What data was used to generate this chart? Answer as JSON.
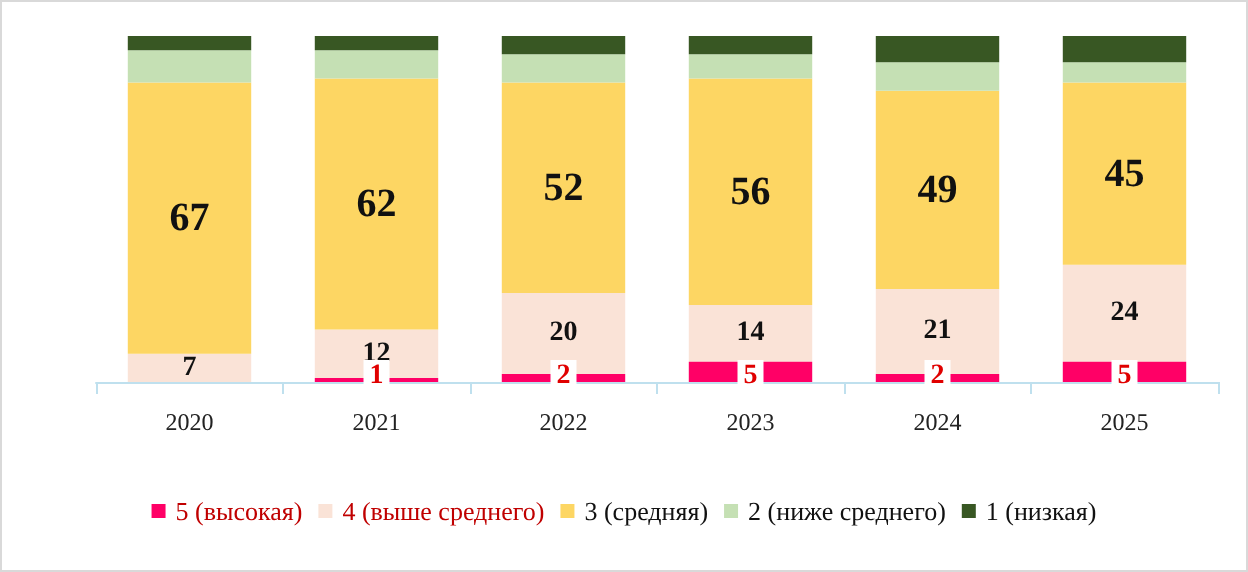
{
  "chart_data": {
    "type": "bar",
    "stacked": true,
    "categories": [
      "2020",
      "2021",
      "2022",
      "2023",
      "2024",
      "2025"
    ],
    "legend": "bottom",
    "series": [
      {
        "name": "5 (высокая)",
        "color": "#ff0066",
        "values": [
          0,
          1,
          2,
          5,
          2,
          5
        ],
        "value_labels": [
          null,
          "1",
          "2",
          "5",
          "2",
          "5"
        ]
      },
      {
        "name": "4 (выше среднего)",
        "color": "#fae3d7",
        "values": [
          7,
          12,
          20,
          14,
          21,
          24
        ],
        "value_labels": [
          "7",
          "12",
          "20",
          "14",
          "21",
          "24"
        ]
      },
      {
        "name": "3 (средняя)",
        "color": "#fdd663",
        "values": [
          67,
          62,
          52,
          56,
          49,
          45
        ],
        "value_labels": [
          "67",
          "62",
          "52",
          "56",
          "49",
          "45"
        ]
      },
      {
        "name": "2 (ниже среднего)",
        "color": "#c5e0b4",
        "values": [
          8,
          7,
          7,
          6,
          7,
          5
        ]
      },
      {
        "name": "1 (низкая)",
        "color": "#385723",
        "values": [
          3.5,
          3.5,
          4.5,
          4.5,
          6.5,
          6.5
        ]
      }
    ]
  }
}
